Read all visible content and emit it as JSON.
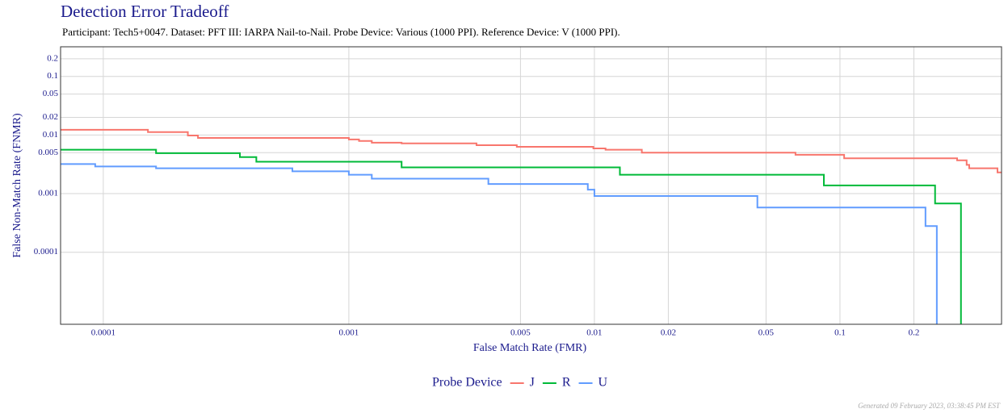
{
  "chart_data": {
    "type": "step",
    "title": "Detection Error Tradeoff",
    "subtitle": "Participant: Tech5+0047. Dataset: PFT III: IARPA Nail-to-Nail. Probe Device: Various (1000 PPI). Reference Device: V (1000 PPI).",
    "x_label": "False Match Rate (FMR)",
    "y_label": "False Non-Match Rate (FNMR)",
    "legend_title": "Probe Device",
    "legend_position": "bottom",
    "footer": "Generated 09 February 2023, 03:38:45 PM EST",
    "log_x": true,
    "log_y": true,
    "grid": true,
    "xlim": [
      6.7e-05,
      0.455
    ],
    "ylim": [
      5.9e-06,
      0.32
    ],
    "xticks": [
      0.0001,
      0.001,
      0.005,
      0.01,
      0.02,
      0.05,
      0.1,
      0.2
    ],
    "yticks": [
      0.2,
      0.1,
      0.05,
      0.02,
      0.01,
      0.005,
      0.001,
      0.0001
    ],
    "series": [
      {
        "name": "J",
        "color": "#f8766d",
        "x": [
          6.7e-05,
          0.000152,
          0.000152,
          0.000221,
          0.000221,
          0.000243,
          0.000243,
          0.001,
          0.001,
          0.0011,
          0.0011,
          0.00124,
          0.00124,
          0.00164,
          0.00164,
          0.00331,
          0.00331,
          0.00483,
          0.00483,
          0.0099,
          0.0099,
          0.0111,
          0.0111,
          0.0156,
          0.0156,
          0.0659,
          0.0659,
          0.104,
          0.104,
          0.3,
          0.3,
          0.328,
          0.328,
          0.336,
          0.336,
          0.438,
          0.438,
          0.455
        ],
        "values": [
          0.0123,
          0.0123,
          0.0112,
          0.0112,
          0.0098,
          0.0098,
          0.0089,
          0.0089,
          0.0084,
          0.0084,
          0.0079,
          0.0079,
          0.0074,
          0.0074,
          0.0072,
          0.0072,
          0.0067,
          0.0067,
          0.0063,
          0.0063,
          0.0059,
          0.0059,
          0.0056,
          0.0056,
          0.005,
          0.005,
          0.0046,
          0.0046,
          0.004,
          0.004,
          0.0037,
          0.0037,
          0.0031,
          0.0031,
          0.0027,
          0.0027,
          0.0023,
          0.0023
        ]
      },
      {
        "name": "R",
        "color": "#00ba38",
        "x": [
          6.7e-05,
          0.000164,
          0.000164,
          0.00036,
          0.00036,
          0.00042,
          0.00042,
          0.00164,
          0.00164,
          0.0127,
          0.0127,
          0.086,
          0.086,
          0.244,
          0.244,
          0.311,
          0.311
        ],
        "values": [
          0.0056,
          0.0056,
          0.0049,
          0.0049,
          0.0042,
          0.0042,
          0.0035,
          0.0035,
          0.0028,
          0.0028,
          0.0021,
          0.0021,
          0.00138,
          0.00138,
          0.00068,
          0.00068,
          0
        ]
      },
      {
        "name": "U",
        "color": "#619cff",
        "x": [
          6.7e-05,
          9.27e-05,
          9.27e-05,
          0.000164,
          0.000164,
          0.000589,
          0.000589,
          0.001,
          0.001,
          0.00124,
          0.00124,
          0.0037,
          0.0037,
          0.0094,
          0.0094,
          0.01,
          0.01,
          0.0461,
          0.0461,
          0.223,
          0.223,
          0.248,
          0.248
        ],
        "values": [
          0.0032,
          0.0032,
          0.0029,
          0.0029,
          0.0027,
          0.0027,
          0.0024,
          0.0024,
          0.0021,
          0.0021,
          0.0018,
          0.0018,
          0.00146,
          0.00146,
          0.00117,
          0.00117,
          0.00091,
          0.00091,
          0.00058,
          0.00058,
          0.00028,
          0.00028,
          0
        ]
      }
    ]
  }
}
